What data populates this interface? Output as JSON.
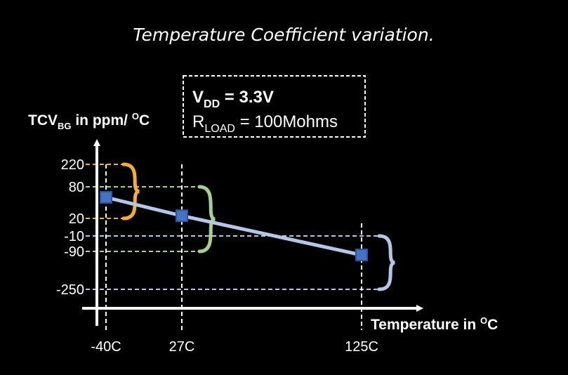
{
  "chart_data": {
    "type": "line",
    "title": "Temperature Coefficient variation.",
    "ylabel": {
      "main": "TCV",
      "sub": "BG",
      "rest": " in ppm/ ",
      "sup": "O",
      "end": "C"
    },
    "xlabel": {
      "main": "Temperature in ",
      "sup": "O",
      "end": "C"
    },
    "annotation": {
      "vdd_main": "V",
      "vdd_sub": "DD",
      "vdd_value": " = 3.3V",
      "rload_main": "R",
      "rload_sub": "LOAD",
      "rload_value": " = 100Mohms"
    },
    "x_ticks": [
      {
        "label": "-40C",
        "value": -40
      },
      {
        "label": "27C",
        "value": 27
      },
      {
        "label": "125C",
        "value": 125
      }
    ],
    "y_ticks": [
      {
        "label": "220",
        "value": 220,
        "color": "#f5b027"
      },
      {
        "label": "80",
        "value": 80,
        "color": "#a8d08d"
      },
      {
        "label": "20",
        "value": 20,
        "color": "#f5b027"
      },
      {
        "label": "-10",
        "value": -10,
        "color": "#b4c7e7"
      },
      {
        "label": "-90",
        "value": -90,
        "color": "#a8d08d"
      },
      {
        "label": "-250",
        "value": -250,
        "color": "#b4c7e7"
      }
    ],
    "series": [
      {
        "points": [
          {
            "x": -40,
            "y": 60
          },
          {
            "x": 27,
            "y": 25
          },
          {
            "x": 125,
            "y": -105
          }
        ]
      }
    ],
    "ranges": [
      {
        "x": -40,
        "y_min": 20,
        "y_max": 220,
        "color": "#f5b027"
      },
      {
        "x": 27,
        "y_min": -90,
        "y_max": 80,
        "color": "#a8d08d"
      },
      {
        "x": 125,
        "y_min": -250,
        "y_max": -10,
        "color": "#b4c7e7"
      }
    ],
    "colors": {
      "axis": "#ffffff",
      "line": "#b4c7e7",
      "marker_fill": "#4472c4",
      "marker_stroke": "#2f5597"
    }
  }
}
